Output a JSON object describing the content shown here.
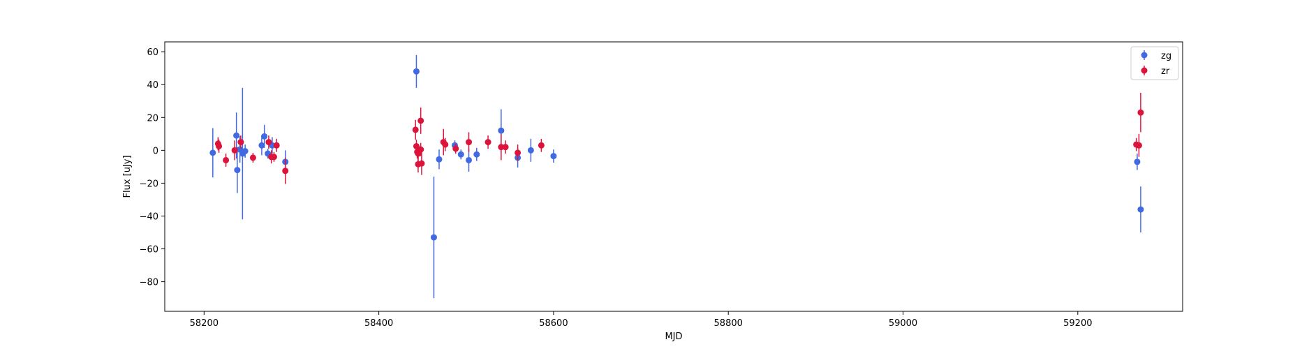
{
  "chart_data": {
    "type": "scatter",
    "title": "",
    "xlabel": "MJD",
    "ylabel": "Flux [uJy]",
    "xlim": [
      58155,
      59320
    ],
    "ylim": [
      -98,
      66
    ],
    "x_ticks": [
      58200,
      58400,
      58600,
      58800,
      59000,
      59200
    ],
    "y_ticks": [
      60,
      40,
      20,
      0,
      -20,
      -40,
      -60,
      -80
    ],
    "x_tick_labels": [
      "58200",
      "58400",
      "58600",
      "58800",
      "59000",
      "59200"
    ],
    "y_tick_labels": [
      "60",
      "40",
      "20",
      "0",
      "−20",
      "−40",
      "−60",
      "−80"
    ],
    "grid": false,
    "legend_position": "top-right",
    "series": [
      {
        "name": "zg",
        "color": "#4169e1",
        "marker": "circle",
        "error_bars": true,
        "points": [
          {
            "x": 58210,
            "y": -1.5,
            "err": 15
          },
          {
            "x": 58237,
            "y": 9,
            "err": 14
          },
          {
            "x": 58238,
            "y": -12,
            "err": 14
          },
          {
            "x": 58241,
            "y": 0.5,
            "err": 8
          },
          {
            "x": 58244,
            "y": -2,
            "err": 40
          },
          {
            "x": 58247,
            "y": -0.5,
            "err": 4
          },
          {
            "x": 58266,
            "y": 3,
            "err": 6
          },
          {
            "x": 58269,
            "y": 8.5,
            "err": 7
          },
          {
            "x": 58273,
            "y": -2,
            "err": 3
          },
          {
            "x": 58278,
            "y": 3,
            "err": 5
          },
          {
            "x": 58293,
            "y": -7,
            "err": 7
          },
          {
            "x": 58443,
            "y": 48,
            "err": 10
          },
          {
            "x": 58463,
            "y": -53,
            "err": 37
          },
          {
            "x": 58469,
            "y": -5.5,
            "err": 6
          },
          {
            "x": 58487,
            "y": 3,
            "err": 3
          },
          {
            "x": 58494,
            "y": -2.5,
            "err": 3
          },
          {
            "x": 58503,
            "y": -6,
            "err": 7
          },
          {
            "x": 58512,
            "y": -2.5,
            "err": 4
          },
          {
            "x": 58540,
            "y": 12,
            "err": 13
          },
          {
            "x": 58559,
            "y": -4.5,
            "err": 6
          },
          {
            "x": 58574,
            "y": 0,
            "err": 7
          },
          {
            "x": 58600,
            "y": -3.5,
            "err": 4
          },
          {
            "x": 59268,
            "y": -7,
            "err": 5
          },
          {
            "x": 59272,
            "y": -36,
            "err": 14
          }
        ]
      },
      {
        "name": "zr",
        "color": "#dc143c",
        "marker": "circle",
        "error_bars": true,
        "points": [
          {
            "x": 58216,
            "y": 4,
            "err": 4
          },
          {
            "x": 58217,
            "y": 2.5,
            "err": 4
          },
          {
            "x": 58225,
            "y": -6,
            "err": 4
          },
          {
            "x": 58235,
            "y": 0,
            "err": 6
          },
          {
            "x": 58242,
            "y": 5,
            "err": 4
          },
          {
            "x": 58256,
            "y": -4.5,
            "err": 3
          },
          {
            "x": 58274,
            "y": 5,
            "err": 4
          },
          {
            "x": 58277,
            "y": -4,
            "err": 4
          },
          {
            "x": 58280,
            "y": -4,
            "err": 3
          },
          {
            "x": 58283,
            "y": 3,
            "err": 4
          },
          {
            "x": 58293,
            "y": -12.5,
            "err": 8
          },
          {
            "x": 58442,
            "y": 12.5,
            "err": 6
          },
          {
            "x": 58443,
            "y": 2.5,
            "err": 4
          },
          {
            "x": 58444,
            "y": -1,
            "err": 4
          },
          {
            "x": 58445,
            "y": -2,
            "err": 5
          },
          {
            "x": 58445,
            "y": -8.5,
            "err": 5
          },
          {
            "x": 58448,
            "y": 0.5,
            "err": 4
          },
          {
            "x": 58448,
            "y": 18,
            "err": 8
          },
          {
            "x": 58449,
            "y": -8,
            "err": 7
          },
          {
            "x": 58474,
            "y": 5,
            "err": 8
          },
          {
            "x": 58476,
            "y": 3.5,
            "err": 4
          },
          {
            "x": 58488,
            "y": 1,
            "err": 3
          },
          {
            "x": 58503,
            "y": 5,
            "err": 6
          },
          {
            "x": 58525,
            "y": 5,
            "err": 4
          },
          {
            "x": 58540,
            "y": 2,
            "err": 8
          },
          {
            "x": 58545,
            "y": 2,
            "err": 4
          },
          {
            "x": 58559,
            "y": -1.5,
            "err": 5
          },
          {
            "x": 58586,
            "y": 3,
            "err": 4
          },
          {
            "x": 59267,
            "y": 3.5,
            "err": 4
          },
          {
            "x": 59270,
            "y": 3,
            "err": 7
          },
          {
            "x": 59272,
            "y": 23,
            "err": 12
          }
        ]
      }
    ]
  }
}
